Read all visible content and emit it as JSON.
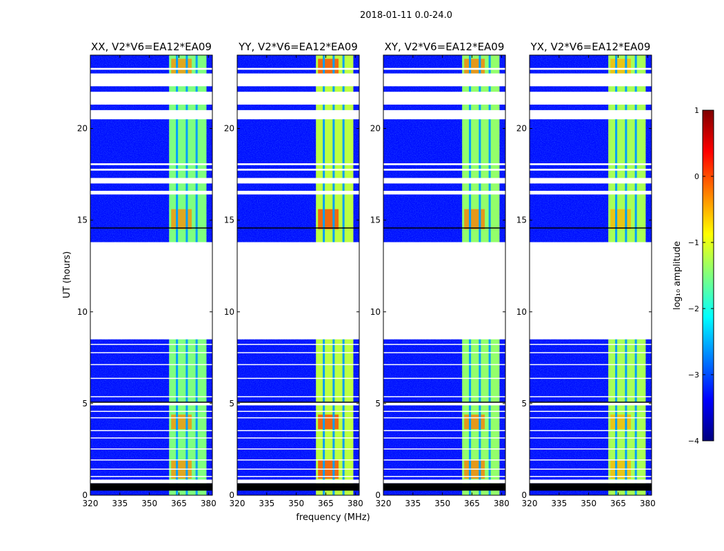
{
  "chart_data": {
    "type": "heatmap",
    "title": "2018-01-11 0.0-24.0",
    "xlabel": "frequency (MHz)",
    "ylabel": "UT (hours)",
    "xlim": [
      320,
      382
    ],
    "ylim": [
      0,
      24
    ],
    "xticks": [
      320,
      335,
      350,
      365,
      380
    ],
    "yticks": [
      0,
      5,
      10,
      15,
      20
    ],
    "panels": [
      {
        "title": "XX, V2*V6=EA12*EA09",
        "band_level": -1.5,
        "hot_level": -0.3
      },
      {
        "title": "YY, V2*V6=EA12*EA09",
        "band_level": -1.2,
        "hot_level": 0.1
      },
      {
        "title": "XY, V2*V6=EA12*EA09",
        "band_level": -1.4,
        "hot_level": -0.2
      },
      {
        "title": "YX, V2*V6=EA12*EA09",
        "band_level": -1.3,
        "hot_level": -0.5
      }
    ],
    "background_level": -3.3,
    "signal_band_mhz": [
      360,
      379
    ],
    "channel_gaps_mhz": [
      364,
      369,
      374
    ],
    "data_gap_hours": [
      8.5,
      13.8
    ],
    "flagged_black_hours": [
      [
        0.25,
        0.65
      ]
    ],
    "flagged_white_hours": [
      [
        0.65,
        0.85
      ],
      [
        1.0,
        1.05
      ],
      [
        1.4,
        1.45
      ],
      [
        1.9,
        1.95
      ],
      [
        2.5,
        2.55
      ],
      [
        3.1,
        3.15
      ],
      [
        3.5,
        3.55
      ],
      [
        4.2,
        4.25
      ],
      [
        4.55,
        4.6
      ],
      [
        4.9,
        5.05
      ],
      [
        5.35,
        5.4
      ],
      [
        6.35,
        6.4
      ],
      [
        7.1,
        7.15
      ],
      [
        7.75,
        7.8
      ],
      [
        8.2,
        8.25
      ],
      [
        16.4,
        16.6
      ],
      [
        17.0,
        17.3
      ],
      [
        17.7,
        17.8
      ],
      [
        18.0,
        18.1
      ],
      [
        20.5,
        21.0
      ],
      [
        21.3,
        22.0
      ],
      [
        22.3,
        23.0
      ],
      [
        23.2,
        23.3
      ]
    ],
    "colorbar": {
      "label": "log₁₀ amplitude",
      "range": [
        -4,
        1
      ],
      "ticks": [
        "1",
        "0",
        "−1",
        "−2",
        "−3",
        "−4"
      ],
      "colormap": [
        "#00007f",
        "#0000ff",
        "#007fff",
        "#00ffff",
        "#7fff7f",
        "#ffff00",
        "#ff7f00",
        "#ff0000",
        "#7f0000"
      ]
    }
  }
}
